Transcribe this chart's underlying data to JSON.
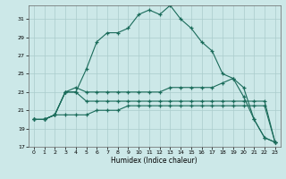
{
  "xlabel": "Humidex (Indice chaleur)",
  "bg_color": "#cce8e8",
  "grid_color": "#aacccc",
  "line_color": "#1a6b5a",
  "xlim": [
    -0.5,
    23.5
  ],
  "ylim": [
    17,
    32.5
  ],
  "yticks": [
    17,
    19,
    21,
    23,
    25,
    27,
    29,
    31
  ],
  "xticks": [
    0,
    1,
    2,
    3,
    4,
    5,
    6,
    7,
    8,
    9,
    10,
    11,
    12,
    13,
    14,
    15,
    16,
    17,
    18,
    19,
    20,
    21,
    22,
    23
  ],
  "series": [
    [
      20.0,
      20.0,
      20.5,
      23.0,
      23.0,
      25.5,
      28.5,
      29.5,
      29.5,
      30.0,
      31.5,
      32.0,
      31.5,
      32.5,
      31.0,
      30.0,
      28.5,
      27.5,
      25.0,
      24.5,
      23.5,
      20.0,
      18.0,
      17.5
    ],
    [
      20.0,
      20.0,
      20.5,
      23.0,
      23.5,
      23.0,
      23.0,
      23.0,
      23.0,
      23.0,
      23.0,
      23.0,
      23.0,
      23.5,
      23.5,
      23.5,
      23.5,
      23.5,
      24.0,
      24.5,
      22.5,
      20.0,
      18.0,
      17.5
    ],
    [
      20.0,
      20.0,
      20.5,
      23.0,
      23.0,
      22.0,
      22.0,
      22.0,
      22.0,
      22.0,
      22.0,
      22.0,
      22.0,
      22.0,
      22.0,
      22.0,
      22.0,
      22.0,
      22.0,
      22.0,
      22.0,
      22.0,
      22.0,
      17.5
    ],
    [
      20.0,
      20.0,
      20.5,
      20.5,
      20.5,
      20.5,
      21.0,
      21.0,
      21.0,
      21.5,
      21.5,
      21.5,
      21.5,
      21.5,
      21.5,
      21.5,
      21.5,
      21.5,
      21.5,
      21.5,
      21.5,
      21.5,
      21.5,
      17.5
    ]
  ]
}
